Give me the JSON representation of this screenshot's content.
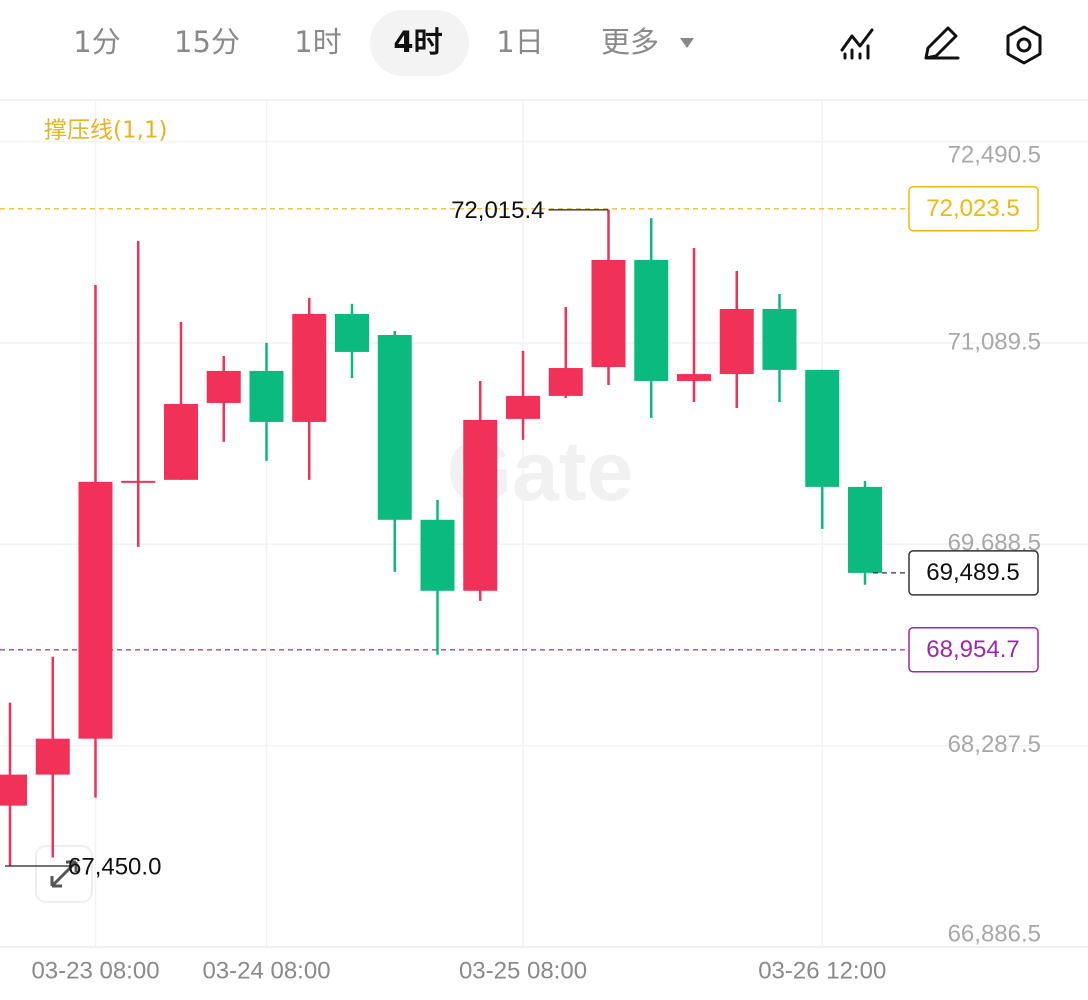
{
  "toolbar": {
    "tabs": [
      "1分",
      "15分",
      "1时",
      "4时",
      "1日",
      "更多"
    ],
    "active_index": 3
  },
  "chart_data": {
    "type": "candlestick",
    "indicator": "撑压线(1,1)",
    "watermark": "Gate",
    "categories": [
      null,
      null,
      "03-23 08:00",
      null,
      null,
      null,
      "03-24 08:00",
      null,
      null,
      null,
      null,
      null,
      "03-25 08:00",
      null,
      null,
      null,
      null,
      null,
      null,
      "03-26 12:00",
      null
    ],
    "open": [
      67870,
      68086,
      68336,
      70123,
      70137,
      70672,
      70895,
      70540,
      71291,
      71145,
      69859,
      69365,
      70561,
      70721,
      70922,
      71667,
      70825,
      70873,
      71326,
      70902,
      70088
    ],
    "high": [
      68587,
      68906,
      71493,
      71799,
      71236,
      70999,
      71090,
      71403,
      71361,
      71173,
      69998,
      70825,
      71034,
      71340,
      72015.4,
      71958,
      71750,
      71590,
      71430,
      70902,
      70130
    ],
    "low": [
      67450,
      67509,
      67926,
      69671,
      70137,
      70401,
      70269,
      70137,
      70846,
      69497,
      68920,
      69295,
      70415,
      70707,
      70797,
      70568,
      70679,
      70637,
      70679,
      69796,
      69407
    ],
    "close": [
      68086,
      68336,
      70123,
      70130,
      70665,
      70895,
      70540,
      71291,
      71027,
      69859,
      69365,
      70554,
      70721,
      70915,
      71667,
      70825,
      70873,
      71326,
      70902,
      70088,
      69489.5
    ],
    "high_labels": [
      null,
      null,
      null,
      null,
      null,
      null,
      null,
      null,
      null,
      null,
      null,
      null,
      null,
      null,
      "72,015.4",
      null,
      null,
      null,
      null,
      null,
      null
    ],
    "low_labels": [
      "67,450.0",
      null,
      null,
      null,
      null,
      null,
      null,
      null,
      null,
      null,
      null,
      null,
      null,
      null,
      null,
      null,
      null,
      null,
      null,
      null,
      null
    ],
    "last_label": "69,489.5",
    "up_color": "#f23158",
    "down_color": "#0bba7e",
    "price_lines": [
      {
        "value": 72023.5,
        "label": "72,023.5",
        "color": "#f0b90b"
      },
      {
        "value": 68954.7,
        "label": "68,954.7",
        "color": "#9c27b0"
      }
    ],
    "ylim": [
      66886.5,
      72780
    ],
    "yticks": [
      {
        "value": 72490.5,
        "label": "72,490.5"
      },
      {
        "value": 71089.5,
        "label": "71,089.5"
      },
      {
        "value": 69688.5,
        "label": "69,688.5"
      },
      {
        "value": 68287.5,
        "label": "68,287.5"
      },
      {
        "value": 66886.5,
        "label": "66,886.5"
      }
    ],
    "grid": true
  }
}
